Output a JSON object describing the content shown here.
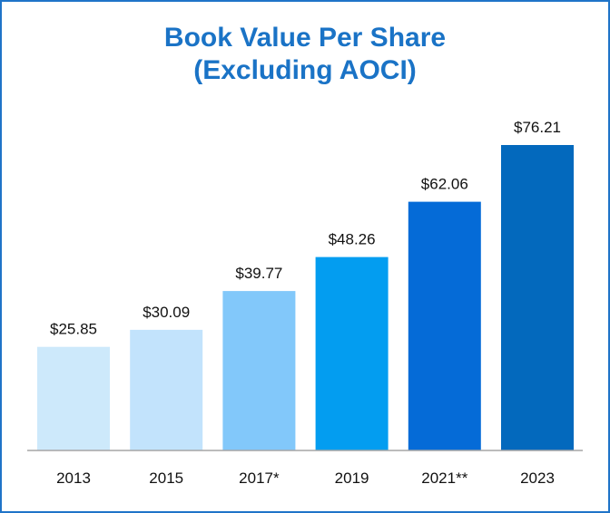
{
  "title_line1": "Book Value Per Share",
  "title_line2": "(Excluding AOCI)",
  "chart_data": {
    "type": "bar",
    "title": "Book Value Per Share (Excluding AOCI)",
    "categories": [
      "2013",
      "2015",
      "2017*",
      "2019",
      "2021**",
      "2023"
    ],
    "values": [
      25.85,
      30.09,
      39.77,
      48.26,
      62.06,
      76.21
    ],
    "value_labels": [
      "$25.85",
      "$30.09",
      "$39.77",
      "$48.26",
      "$62.06",
      "$76.21"
    ],
    "bar_colors": [
      "#cde9fb",
      "#c2e3fc",
      "#82c8fa",
      "#039df0",
      "#056bd7",
      "#0369bd"
    ],
    "ylim": [
      0,
      76.21
    ],
    "grid": false,
    "legend": "none",
    "xlabel": "",
    "ylabel": ""
  },
  "colors": {
    "title": "#1a73c6",
    "border": "#1f74c8",
    "baseline": "#a6a6a6"
  }
}
